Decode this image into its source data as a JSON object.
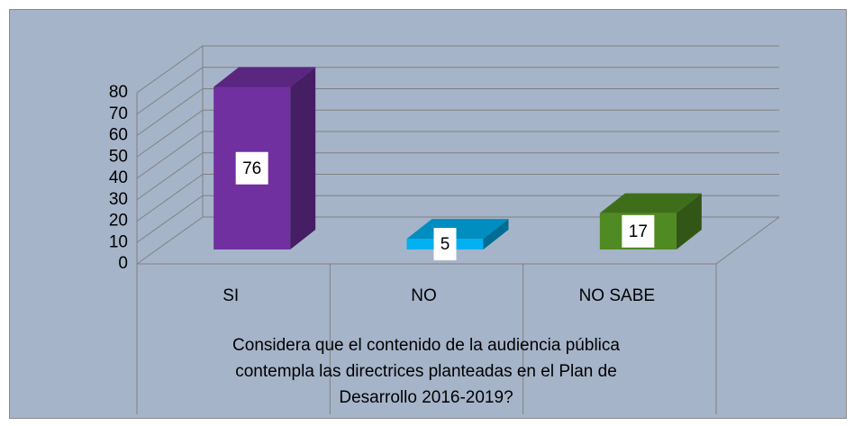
{
  "chart_data": {
    "type": "bar3d",
    "categories": [
      "SI",
      "NO",
      "NO SABE"
    ],
    "values": [
      76,
      5,
      17
    ],
    "colors": [
      "#7030a0",
      "#00b0f0",
      "#4f8a22"
    ],
    "ylim": [
      0,
      80
    ],
    "yticks": [
      0,
      10,
      20,
      30,
      40,
      50,
      60,
      70,
      80
    ],
    "grid": true,
    "x_label": [
      "Considera que el contenido de la audiencia pública",
      "contempla las directrices planteadas en el Plan de",
      "Desarrollo 2016-2019?"
    ]
  }
}
